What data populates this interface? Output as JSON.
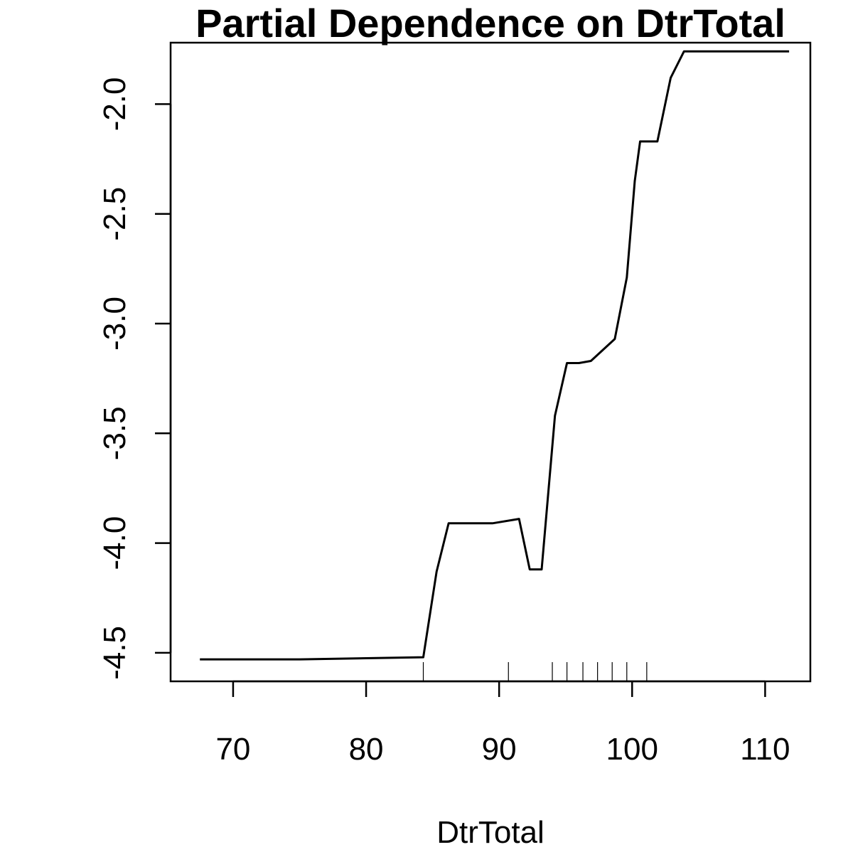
{
  "chart_data": {
    "type": "line",
    "title": "Partial Dependence on DtrTotal",
    "xlabel": "DtrTotal",
    "ylabel": "",
    "xlim": [
      65.3,
      113.4
    ],
    "ylim": [
      -4.63,
      -1.72
    ],
    "x_ticks": [
      70,
      80,
      90,
      100,
      110
    ],
    "x_tick_labels": [
      "70",
      "80",
      "90",
      "100",
      "110"
    ],
    "y_ticks": [
      -4.5,
      -4.0,
      -3.5,
      -3.0,
      -2.5,
      -2.0
    ],
    "y_tick_labels": [
      "-4.5",
      "-4.0",
      "-3.5",
      "-3.0",
      "-2.5",
      "-2.0"
    ],
    "grid": false,
    "legend": "none",
    "line_color": "#000000",
    "series": [
      {
        "x": [
          67.5,
          75.0,
          84.3,
          85.3,
          86.2,
          89.5,
          91.5,
          92.3,
          93.2,
          94.2,
          95.1,
          96.0,
          96.9,
          98.7,
          99.6,
          100.2,
          100.6,
          101.9,
          102.9,
          103.9,
          111.8
        ],
        "y": [
          -4.53,
          -4.53,
          -4.52,
          -4.13,
          -3.91,
          -3.91,
          -3.89,
          -4.12,
          -4.12,
          -3.42,
          -3.18,
          -3.18,
          -3.17,
          -3.07,
          -2.79,
          -2.35,
          -2.17,
          -2.17,
          -1.88,
          -1.76,
          -1.76
        ]
      }
    ],
    "rug": [
      84.3,
      90.7,
      94.0,
      95.1,
      96.3,
      97.4,
      98.5,
      99.6,
      101.1
    ]
  }
}
